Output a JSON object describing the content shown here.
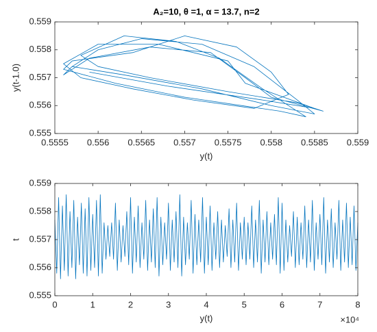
{
  "chart_data": [
    {
      "type": "line",
      "title": "A₂=10, θ =1, α = 13.7, n=2",
      "x_label": "y(t)",
      "y_label": "y(t-1.0)",
      "color": "#0072BD",
      "xlim": [
        0.5555,
        0.559
      ],
      "xticks": [
        0.5555,
        0.556,
        0.5565,
        0.557,
        0.5575,
        0.558,
        0.5585,
        0.559
      ],
      "ylim": [
        0.555,
        0.559
      ],
      "yticks": [
        0.555,
        0.556,
        0.557,
        0.558,
        0.559
      ],
      "x": [
        0.5557,
        0.556,
        0.5565,
        0.5572,
        0.5578,
        0.5583,
        0.5585,
        0.558,
        0.5572,
        0.5563,
        0.5557,
        0.5556,
        0.5559,
        0.5566,
        0.5573,
        0.5577,
        0.558,
        0.5586,
        0.5583,
        0.5575,
        0.5566,
        0.556,
        0.5558,
        0.5563,
        0.5569,
        0.5574,
        0.5579,
        0.5584,
        0.5581,
        0.557,
        0.5562,
        0.5556,
        0.5557,
        0.5564,
        0.557,
        0.5576,
        0.558,
        0.5582,
        0.5578,
        0.5571,
        0.5564,
        0.5558,
        0.5556,
        0.556,
        0.5567,
        0.5575,
        0.5577,
        0.5585,
        0.5579,
        0.5568,
        0.5559
      ],
      "values": [
        0.5574,
        0.558,
        0.5584,
        0.5582,
        0.5574,
        0.5562,
        0.5557,
        0.556,
        0.5566,
        0.5571,
        0.5574,
        0.5571,
        0.5577,
        0.5581,
        0.5579,
        0.557,
        0.5563,
        0.5558,
        0.5561,
        0.5565,
        0.557,
        0.5574,
        0.5578,
        0.5585,
        0.5583,
        0.5577,
        0.5566,
        0.5556,
        0.5558,
        0.5563,
        0.5568,
        0.5573,
        0.5576,
        0.5579,
        0.5585,
        0.5581,
        0.5572,
        0.5564,
        0.5559,
        0.5562,
        0.5566,
        0.557,
        0.5575,
        0.5582,
        0.5582,
        0.5576,
        0.5568,
        0.5559,
        0.5562,
        0.5567,
        0.5572
      ]
    },
    {
      "type": "line",
      "x_label": "y(t)",
      "y_label": "t",
      "x_exponent": "×10⁴",
      "color": "#0072BD",
      "xlim": [
        0,
        8
      ],
      "xticks": [
        0,
        1,
        2,
        3,
        4,
        5,
        6,
        7,
        8
      ],
      "ylim": [
        0.555,
        0.559
      ],
      "yticks": [
        0.555,
        0.556,
        0.557,
        0.558,
        0.559
      ],
      "x": [
        0,
        0.05,
        0.1,
        0.15,
        0.2,
        0.25,
        0.3,
        0.35,
        0.4,
        0.45,
        0.5,
        0.55,
        0.6,
        0.65,
        0.7,
        0.75,
        0.8,
        0.85,
        0.9,
        0.95,
        1,
        1.05,
        1.1,
        1.15,
        1.2,
        1.25,
        1.3,
        1.35,
        1.4,
        1.45,
        1.5,
        1.55,
        1.6,
        1.65,
        1.7,
        1.75,
        1.8,
        1.85,
        1.9,
        1.95,
        2,
        2.05,
        2.1,
        2.15,
        2.2,
        2.25,
        2.3,
        2.35,
        2.4,
        2.45,
        2.5,
        2.55,
        2.6,
        2.65,
        2.7,
        2.75,
        2.8,
        2.85,
        2.9,
        2.95,
        3,
        3.05,
        3.1,
        3.15,
        3.2,
        3.25,
        3.3,
        3.35,
        3.4,
        3.45,
        3.5,
        3.55,
        3.6,
        3.65,
        3.7,
        3.75,
        3.8,
        3.85,
        3.9,
        3.95,
        4,
        4.05,
        4.1,
        4.15,
        4.2,
        4.25,
        4.3,
        4.35,
        4.4,
        4.45,
        4.5,
        4.55,
        4.6,
        4.65,
        4.7,
        4.75,
        4.8,
        4.85,
        4.9,
        4.95,
        5,
        5.05,
        5.1,
        5.15,
        5.2,
        5.25,
        5.3,
        5.35,
        5.4,
        5.45,
        5.5,
        5.55,
        5.6,
        5.65,
        5.7,
        5.75,
        5.8,
        5.85,
        5.9,
        5.95,
        6,
        6.05,
        6.1,
        6.15,
        6.2,
        6.25,
        6.3,
        6.35,
        6.4,
        6.45,
        6.5,
        6.55,
        6.6,
        6.65,
        6.7,
        6.75,
        6.8,
        6.85,
        6.9,
        6.95,
        7,
        7.05,
        7.1,
        7.15,
        7.2,
        7.25,
        7.3,
        7.35,
        7.4,
        7.45,
        7.5,
        7.55,
        7.6,
        7.65,
        7.7,
        7.75,
        7.8,
        7.85,
        7.9,
        7.95,
        8
      ],
      "values": [
        0.5577,
        0.5558,
        0.5585,
        0.5556,
        0.5582,
        0.5559,
        0.5586,
        0.5557,
        0.558,
        0.556,
        0.5584,
        0.5556,
        0.5578,
        0.5561,
        0.5583,
        0.5558,
        0.5581,
        0.5557,
        0.5585,
        0.5559,
        0.5579,
        0.556,
        0.5584,
        0.5557,
        0.5586,
        0.5558,
        0.5576,
        0.5563,
        0.5575,
        0.5564,
        0.5576,
        0.5563,
        0.5583,
        0.5559,
        0.5577,
        0.5562,
        0.5575,
        0.5564,
        0.558,
        0.5561,
        0.5585,
        0.5558,
        0.5578,
        0.5562,
        0.5582,
        0.556,
        0.5576,
        0.5563,
        0.5584,
        0.5559,
        0.5577,
        0.5562,
        0.5581,
        0.556,
        0.5585,
        0.5557,
        0.5578,
        0.5561,
        0.5576,
        0.5563,
        0.5583,
        0.5559,
        0.5577,
        0.5562,
        0.558,
        0.556,
        0.5586,
        0.5557,
        0.5578,
        0.5561,
        0.5576,
        0.5563,
        0.5584,
        0.5558,
        0.5579,
        0.5561,
        0.5577,
        0.5562,
        0.5585,
        0.5558,
        0.5578,
        0.5561,
        0.5582,
        0.5559,
        0.5576,
        0.5563,
        0.558,
        0.556,
        0.5577,
        0.5562,
        0.5575,
        0.5564,
        0.5581,
        0.556,
        0.5577,
        0.5562,
        0.5583,
        0.5559,
        0.5576,
        0.5563,
        0.5578,
        0.5561,
        0.5576,
        0.5563,
        0.5582,
        0.556,
        0.5577,
        0.5562,
        0.5584,
        0.5558,
        0.5577,
        0.5562,
        0.558,
        0.5561,
        0.5576,
        0.5563,
        0.5579,
        0.5561,
        0.5585,
        0.5558,
        0.5583,
        0.5559,
        0.5577,
        0.5562,
        0.5575,
        0.5564,
        0.558,
        0.556,
        0.5578,
        0.5561,
        0.5576,
        0.5563,
        0.5582,
        0.556,
        0.5577,
        0.5562,
        0.5584,
        0.5559,
        0.5576,
        0.5563,
        0.5579,
        0.5561,
        0.5585,
        0.5558,
        0.5577,
        0.5562,
        0.5581,
        0.556,
        0.5576,
        0.5563,
        0.5584,
        0.5559,
        0.5577,
        0.5562,
        0.5583,
        0.556,
        0.5578,
        0.5561,
        0.5582,
        0.5559,
        0.5576
      ]
    }
  ]
}
